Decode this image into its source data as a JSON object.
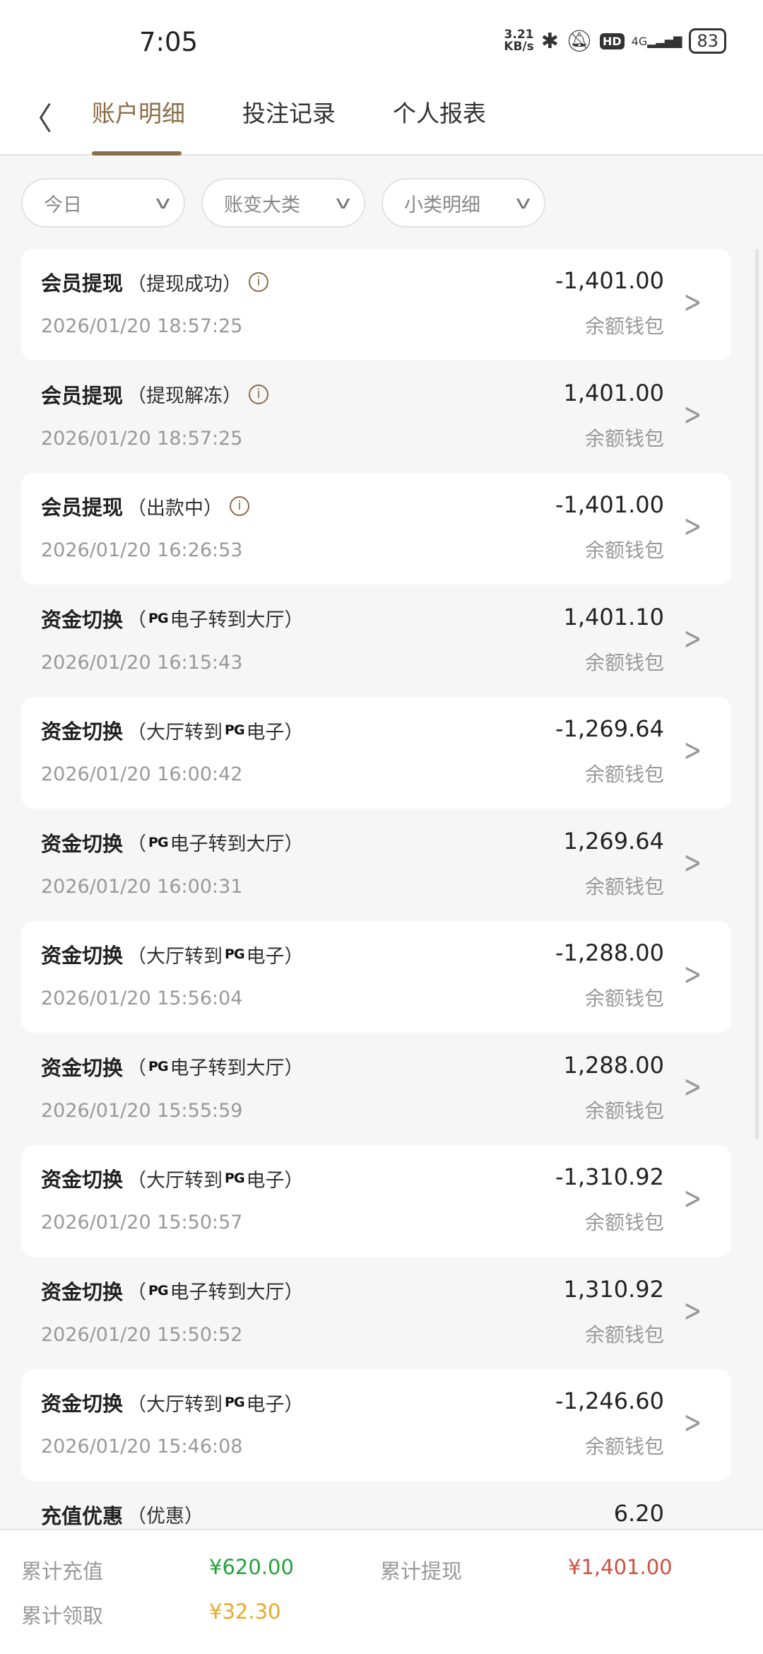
{
  "status_bar": {
    "time": "7:05",
    "speed": "3.21",
    "speed_unit": "KB/s",
    "network": "4G",
    "battery": "83"
  },
  "nav": {
    "tabs": [
      {
        "label": "账户明细",
        "active": true
      },
      {
        "label": "投注记录"
      },
      {
        "label": "个人报表"
      }
    ]
  },
  "filters": [
    {
      "label": "今日"
    },
    {
      "label": "账变大类"
    },
    {
      "label": "小类明细"
    }
  ],
  "colors": {
    "accent": "#8c6d46",
    "green": "#22a33a",
    "red": "#d0503f",
    "yellow": "#e8aa2a"
  },
  "records": [
    {
      "type": "会员提现",
      "detail": "（提现成功）",
      "info": true,
      "date": "2026/01/20 18:57:25",
      "amount": "-1,401.00",
      "wallet": "余额钱包"
    },
    {
      "type": "会员提现",
      "detail": "（提现解冻）",
      "info": true,
      "date": "2026/01/20 18:57:25",
      "amount": "1,401.00",
      "wallet": "余额钱包"
    },
    {
      "type": "会员提现",
      "detail": "（出款中）",
      "info": true,
      "date": "2026/01/20 16:26:53",
      "amount": "-1,401.00",
      "wallet": "余额钱包"
    },
    {
      "type": "资金切换",
      "detail_pre": "（",
      "pg": "PG",
      "detail_post": "电子转到大厅）",
      "date": "2026/01/20 16:15:43",
      "amount": "1,401.10",
      "wallet": "余额钱包"
    },
    {
      "type": "资金切换",
      "detail_pre": "（大厅转到",
      "pg": "PG",
      "detail_post": "电子）",
      "date": "2026/01/20 16:00:42",
      "amount": "-1,269.64",
      "wallet": "余额钱包"
    },
    {
      "type": "资金切换",
      "detail_pre": "（",
      "pg": "PG",
      "detail_post": "电子转到大厅）",
      "date": "2026/01/20 16:00:31",
      "amount": "1,269.64",
      "wallet": "余额钱包"
    },
    {
      "type": "资金切换",
      "detail_pre": "（大厅转到",
      "pg": "PG",
      "detail_post": "电子）",
      "date": "2026/01/20 15:56:04",
      "amount": "-1,288.00",
      "wallet": "余额钱包"
    },
    {
      "type": "资金切换",
      "detail_pre": "（",
      "pg": "PG",
      "detail_post": "电子转到大厅）",
      "date": "2026/01/20 15:55:59",
      "amount": "1,288.00",
      "wallet": "余额钱包"
    },
    {
      "type": "资金切换",
      "detail_pre": "（大厅转到",
      "pg": "PG",
      "detail_post": "电子）",
      "date": "2026/01/20 15:50:57",
      "amount": "-1,310.92",
      "wallet": "余额钱包"
    },
    {
      "type": "资金切换",
      "detail_pre": "（",
      "pg": "PG",
      "detail_post": "电子转到大厅）",
      "date": "2026/01/20 15:50:52",
      "amount": "1,310.92",
      "wallet": "余额钱包"
    },
    {
      "type": "资金切换",
      "detail_pre": "（大厅转到",
      "pg": "PG",
      "detail_post": "电子）",
      "date": "2026/01/20 15:46:08",
      "amount": "-1,246.60",
      "wallet": "余额钱包"
    },
    {
      "type": "充值优惠",
      "detail": "（优惠）",
      "amount": "6.20"
    }
  ],
  "summary": {
    "recharge_label": "累计充值",
    "recharge_value": "¥620.00",
    "withdraw_label": "累计提现",
    "withdraw_value": "¥1,401.00",
    "claim_label": "累计领取",
    "claim_value": "¥32.30"
  }
}
